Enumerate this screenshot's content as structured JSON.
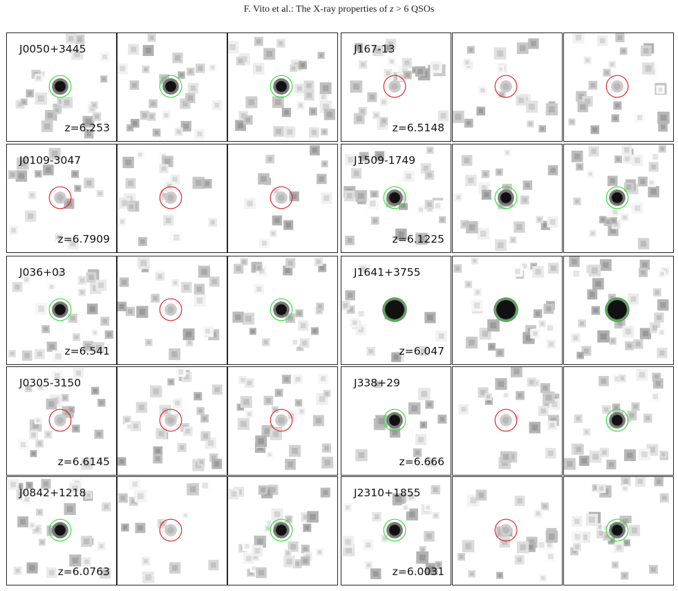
{
  "header": {
    "prefix": "F. Vito et al.: The X-ray properties of",
    "var_z": "z",
    "suffix": " > 6 QSOs"
  },
  "colors": {
    "detected_circle": "#2ee02e",
    "undetected_circle": "#e52222",
    "source_dark": "#111111"
  },
  "rows": [
    {
      "name": "J0050+3445",
      "redshift": "z=6.253",
      "circles": [
        "detected",
        "detected",
        "detected"
      ]
    },
    {
      "name": "J0109-3047",
      "redshift": "z=6.7909",
      "circles": [
        "undetected",
        "undetected",
        "undetected"
      ]
    },
    {
      "name": "J036+03",
      "redshift": "z=6.541",
      "circles": [
        "detected",
        "undetected",
        "detected"
      ]
    },
    {
      "name": "J0305-3150",
      "redshift": "z=6.6145",
      "circles": [
        "undetected",
        "undetected",
        "undetected"
      ]
    },
    {
      "name": "J0842+1218",
      "redshift": "z=6.0763",
      "circles": [
        "detected",
        "undetected",
        "detected"
      ]
    },
    {
      "name": "J167-13",
      "redshift": "z=6.5148",
      "circles": [
        "undetected",
        "undetected",
        "undetected"
      ]
    },
    {
      "name": "J1509-1749",
      "redshift": "z=6.1225",
      "circles": [
        "detected",
        "detected",
        "detected"
      ]
    },
    {
      "name": "J1641+3755",
      "redshift": "z=6.047",
      "circles": [
        "detected",
        "detected",
        "detected"
      ]
    },
    {
      "name": "J338+29",
      "redshift": "z=6.666",
      "circles": [
        "detected",
        "undetected",
        "detected"
      ]
    },
    {
      "name": "J2310+1855",
      "redshift": "z=6.0031",
      "circles": [
        "detected",
        "undetected",
        "detected"
      ]
    }
  ]
}
